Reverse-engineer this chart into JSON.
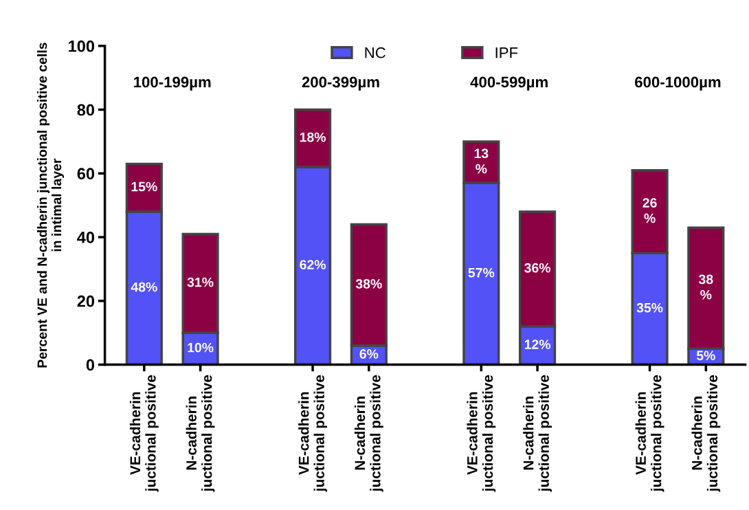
{
  "chart_data": {
    "type": "bar",
    "stacked": true,
    "categories": [
      "VE-cadherin\njuctional positive",
      "N-cadherin\njuctional positive",
      null,
      "VE-cadherin\njuctional positive",
      "N-cadherin\njuctional positive",
      null,
      "VE-cadherin\njuctional positive",
      "N-cadherin\njuctional positive",
      null,
      "VE-cadherin\njuctional positive",
      "N-cadherin\njuctional positive"
    ],
    "ylabel": "Percent VE and N-cadherin junctional positive cells\nin intimal layer",
    "series": [
      {
        "name": "NC",
        "color": "#5252f7",
        "values": [
          48,
          10,
          null,
          62,
          6,
          null,
          57,
          12,
          null,
          35,
          5
        ],
        "value_labels": [
          "48%",
          "10%",
          null,
          "62%",
          "6%",
          null,
          "57%",
          "12%",
          null,
          "35%",
          "5%"
        ]
      },
      {
        "name": "IPF",
        "color": "#8c0044",
        "values": [
          15,
          31,
          null,
          18,
          38,
          null,
          13,
          36,
          null,
          26,
          38
        ],
        "value_labels": [
          "15%",
          "31%",
          null,
          "18%",
          "38%",
          null,
          "13\n%",
          "36%",
          null,
          "26\n%",
          "38\n%"
        ]
      }
    ],
    "annotations": [
      "100-199µm",
      "200-399µm",
      "400-599µm",
      "600-1000µm"
    ],
    "ylim": [
      0,
      100
    ],
    "yticks": [
      0,
      20,
      40,
      60,
      80,
      100
    ],
    "legend": "top",
    "grid": false
  }
}
